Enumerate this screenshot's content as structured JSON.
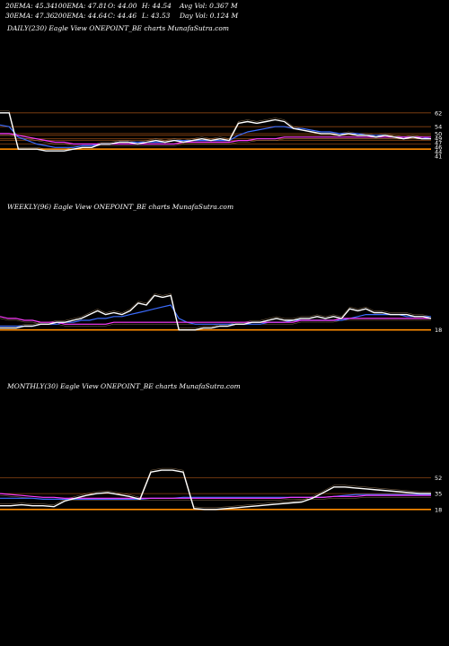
{
  "header": {
    "ema20": "20EMA: 45.34",
    "ema100": "100EMA: 47.81",
    "open": "O: 44.00",
    "high": "H: 44.54",
    "avg_vol": "Avg Vol: 0.367  M",
    "ema30": "30EMA: 47.36",
    "ema200": "200EMA: 44.64",
    "close": "C: 44.46",
    "low": "L: 43.53",
    "day_vol": "Day Vol: 0.124  M"
  },
  "panels": {
    "daily": {
      "title": "DAILY(230) Eagle   View  ONEPOINT_BE charts MunafaSutra.com"
    },
    "weekly": {
      "title": "WEEKLY(96) Eagle   View  ONEPOINT_BE charts MunafaSutra.com"
    },
    "monthly": {
      "title": "MONTHLY(30) Eagle   View  ONEPOINT_BE charts MunafaSutra.com"
    }
  },
  "colors": {
    "background": "#000000",
    "price": "#ffffff",
    "ema_short": "#3b6cff",
    "ema_long": "#ff3cff",
    "ema_alt": "#c8a070",
    "support_line": "#ff8c00",
    "resistance_line": "#8b4513"
  },
  "chart_data": [
    {
      "type": "line",
      "panel": "daily",
      "right_axis_labels": [
        "62",
        "54",
        "50",
        "49",
        "47",
        "46",
        "44",
        "41"
      ],
      "series": [
        {
          "role": "price",
          "color": "#ffffff",
          "values": [
            62,
            62,
            41,
            41,
            41,
            40,
            40,
            40,
            41,
            42,
            42,
            44,
            44,
            45,
            45,
            44,
            45,
            46,
            45,
            46,
            45,
            46,
            47,
            46,
            47,
            46,
            56,
            57,
            56,
            57,
            58,
            57,
            53,
            52,
            51,
            50,
            50,
            49,
            50,
            49,
            49,
            48,
            49,
            48,
            47,
            48,
            47,
            47
          ]
        },
        {
          "role": "ema-short",
          "color": "#3b6cff",
          "values": [
            55,
            54,
            48,
            46,
            44,
            43,
            42,
            42,
            42,
            43,
            43,
            44,
            44,
            45,
            45,
            45,
            45,
            45,
            45,
            46,
            46,
            46,
            46,
            46,
            46,
            46,
            49,
            51,
            52,
            53,
            54,
            54,
            53,
            53,
            52,
            51,
            51,
            50,
            50,
            50,
            49,
            49,
            49,
            48,
            48,
            48,
            48,
            47
          ]
        },
        {
          "role": "ema-long",
          "color": "#ff3cff",
          "values": [
            50,
            50,
            49,
            48,
            47,
            46,
            45,
            45,
            44,
            44,
            44,
            44,
            44,
            44,
            44,
            44,
            44,
            44,
            44,
            44,
            45,
            45,
            45,
            45,
            45,
            45,
            46,
            46,
            47,
            47,
            47,
            48,
            48,
            48,
            48,
            48,
            48,
            48,
            48,
            48,
            48,
            48,
            48,
            48,
            48,
            48,
            48,
            48
          ]
        }
      ],
      "horizontal_lines": [
        62,
        54,
        50,
        49,
        47,
        46,
        44,
        41
      ]
    },
    {
      "type": "line",
      "panel": "weekly",
      "right_axis_labels": [
        "18"
      ],
      "series": [
        {
          "role": "price",
          "color": "#ffffff",
          "values": [
            19,
            19,
            19,
            20,
            20,
            21,
            21,
            22,
            22,
            23,
            24,
            26,
            28,
            26,
            27,
            26,
            28,
            32,
            31,
            36,
            35,
            36,
            18,
            18,
            18,
            19,
            19,
            20,
            20,
            21,
            21,
            22,
            22,
            23,
            24,
            23,
            23,
            24,
            24,
            25,
            24,
            25,
            24,
            29,
            28,
            29,
            27,
            27,
            26,
            26,
            26,
            25,
            25,
            24
          ]
        },
        {
          "role": "ema-short",
          "color": "#3b6cff",
          "values": [
            20,
            20,
            20,
            20,
            20,
            21,
            21,
            21,
            22,
            22,
            23,
            23,
            24,
            24,
            25,
            25,
            26,
            27,
            28,
            29,
            30,
            31,
            24,
            22,
            21,
            21,
            21,
            21,
            21,
            21,
            21,
            21,
            21,
            22,
            22,
            22,
            23,
            23,
            23,
            23,
            23,
            23,
            23,
            24,
            25,
            26,
            26,
            26,
            26,
            26,
            25,
            25,
            25,
            25
          ]
        },
        {
          "role": "ema-long",
          "color": "#ff3cff",
          "values": [
            25,
            24,
            24,
            23,
            23,
            22,
            22,
            22,
            21,
            21,
            21,
            21,
            21,
            21,
            22,
            22,
            22,
            22,
            22,
            22,
            22,
            22,
            22,
            22,
            22,
            22,
            22,
            22,
            22,
            22,
            22,
            22,
            22,
            22,
            22,
            22,
            22,
            23,
            23,
            23,
            23,
            23,
            24,
            24,
            24,
            24,
            24,
            24,
            24,
            24,
            24,
            24,
            24,
            24
          ]
        }
      ],
      "horizontal_lines": [
        18
      ]
    },
    {
      "type": "line",
      "panel": "monthly",
      "right_axis_labels": [
        "52",
        "35",
        "18"
      ],
      "series": [
        {
          "role": "price",
          "color": "#ffffff",
          "values": [
            22,
            22,
            23,
            22,
            22,
            21,
            27,
            30,
            33,
            35,
            36,
            34,
            32,
            29,
            58,
            60,
            60,
            58,
            19,
            18,
            18,
            19,
            20,
            21,
            22,
            23,
            24,
            25,
            26,
            30,
            36,
            42,
            42,
            41,
            40,
            39,
            38,
            37,
            36,
            35,
            35
          ]
        },
        {
          "role": "ema-short",
          "color": "#3b6cff",
          "values": [
            30,
            30,
            30,
            30,
            29,
            29,
            29,
            29,
            29,
            29,
            29,
            29,
            29,
            29,
            30,
            30,
            30,
            31,
            31,
            31,
            31,
            31,
            31,
            31,
            31,
            31,
            31,
            31,
            31,
            31,
            31,
            32,
            33,
            34,
            34,
            34,
            34,
            34,
            34,
            34,
            34
          ]
        },
        {
          "role": "ema-long",
          "color": "#ff3cff",
          "values": [
            35,
            34,
            33,
            32,
            31,
            31,
            30,
            30,
            30,
            30,
            30,
            30,
            30,
            30,
            30,
            30,
            30,
            30,
            30,
            30,
            30,
            30,
            30,
            30,
            30,
            30,
            30,
            31,
            31,
            31,
            31,
            32,
            32,
            32,
            33,
            33,
            33,
            33,
            33,
            33,
            33
          ]
        }
      ],
      "horizontal_lines": [
        52,
        35,
        18
      ]
    }
  ]
}
